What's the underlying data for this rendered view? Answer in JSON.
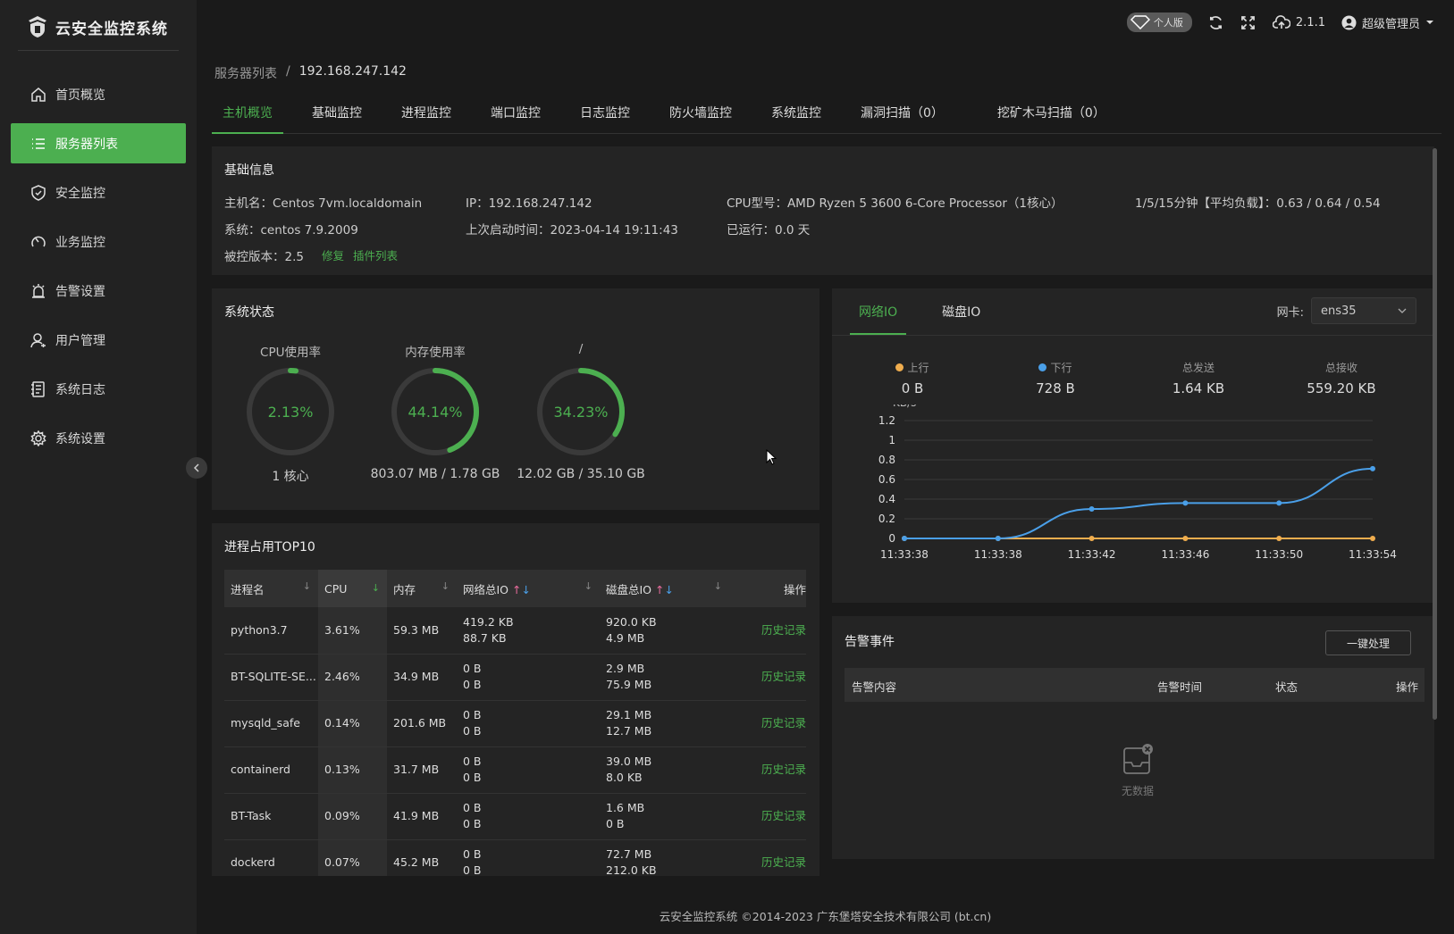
{
  "app": {
    "title": "云安全监控系统"
  },
  "topbar": {
    "edition_badge": "个人版",
    "version": "2.1.1",
    "user": "超级管理员"
  },
  "sidebar": {
    "items": [
      {
        "label": "首页概览",
        "icon": "home-icon"
      },
      {
        "label": "服务器列表",
        "icon": "list-icon",
        "active": true
      },
      {
        "label": "安全监控",
        "icon": "shield-icon"
      },
      {
        "label": "业务监控",
        "icon": "gauge-icon"
      },
      {
        "label": "告警设置",
        "icon": "alarm-icon"
      },
      {
        "label": "用户管理",
        "icon": "user-icon"
      },
      {
        "label": "系统日志",
        "icon": "log-icon"
      },
      {
        "label": "系统设置",
        "icon": "gear-icon"
      }
    ]
  },
  "breadcrumb": {
    "parent": "服务器列表",
    "sep": "/",
    "current": "192.168.247.142"
  },
  "tabs": [
    "主机概览",
    "基础监控",
    "进程监控",
    "端口监控",
    "日志监控",
    "防火墙监控",
    "系统监控",
    "漏洞扫描（0）",
    "挖矿木马扫描（0）"
  ],
  "info": {
    "title": "基础信息",
    "hostname": "主机名：Centos 7vm.localdomain",
    "ip": "IP：192.168.247.142",
    "cpu_model": "CPU型号：AMD Ryzen 5 3600 6-Core Processor（1核心）",
    "load": "1/5/15分钟【平均负载】：0.63 / 0.64 / 0.54",
    "os": "系统：centos 7.9.2009",
    "boot": "上次启动时间：2023-04-14 19:11:43",
    "uptime": "已运行：0.0 天",
    "agent_version": "被控版本：2.5",
    "repair": "修复",
    "plugins": "插件列表"
  },
  "sys_status": {
    "title": "系统状态",
    "gauges": [
      {
        "label": "CPU使用率",
        "pct": "2.13%",
        "value": 2.13,
        "sub": "1 核心"
      },
      {
        "label": "内存使用率",
        "pct": "44.14%",
        "value": 44.14,
        "sub": "803.07 MB / 1.78 GB"
      },
      {
        "label": "/",
        "pct": "34.23%",
        "value": 34.23,
        "sub": "12.02 GB / 35.10 GB"
      }
    ]
  },
  "net": {
    "tabs": [
      "网络IO",
      "磁盘IO"
    ],
    "nic_label": "网卡:",
    "nic_value": "ens35",
    "stats": [
      {
        "label": "上行",
        "value": "0 B",
        "color": "#f0ad4e"
      },
      {
        "label": "下行",
        "value": "728 B",
        "color": "#4a9fe8"
      },
      {
        "label": "总发送",
        "value": "1.64 KB"
      },
      {
        "label": "总接收",
        "value": "559.20 KB"
      }
    ]
  },
  "chart_data": {
    "type": "line",
    "ylabel": "KB/s",
    "ylim": [
      0,
      1.2
    ],
    "yticks": [
      "1.2",
      "1",
      "0.8",
      "0.6",
      "0.4",
      "0.2",
      "0"
    ],
    "categories": [
      "11:33:38",
      "11:33:38",
      "11:33:42",
      "11:33:46",
      "11:33:50",
      "11:33:54"
    ],
    "series": [
      {
        "name": "上行",
        "color": "#f0ad4e",
        "values": [
          0,
          0,
          0,
          0,
          0,
          0
        ]
      },
      {
        "name": "下行",
        "color": "#4a9fe8",
        "values": [
          0,
          0,
          0.3,
          0.36,
          0.36,
          0.71
        ]
      }
    ]
  },
  "proc": {
    "title": "进程占用TOP10",
    "headers": [
      "进程名",
      "CPU",
      "内存",
      "网络总IO",
      "磁盘总IO",
      "操作"
    ],
    "rows": [
      {
        "name": "python3.7",
        "cpu": "3.61%",
        "mem": "59.3 MB",
        "net1": "419.2 KB",
        "net2": "88.7 KB",
        "disk1": "920.0 KB",
        "disk2": "4.9 MB",
        "action": "历史记录"
      },
      {
        "name": "BT-SQLITE-SE...",
        "cpu": "2.46%",
        "mem": "34.9 MB",
        "net1": "0 B",
        "net2": "0 B",
        "disk1": "2.9 MB",
        "disk2": "75.9 MB",
        "action": "历史记录"
      },
      {
        "name": "mysqld_safe",
        "cpu": "0.14%",
        "mem": "201.6 MB",
        "net1": "0 B",
        "net2": "0 B",
        "disk1": "29.1 MB",
        "disk2": "12.7 MB",
        "action": "历史记录"
      },
      {
        "name": "containerd",
        "cpu": "0.13%",
        "mem": "31.7 MB",
        "net1": "0 B",
        "net2": "0 B",
        "disk1": "39.0 MB",
        "disk2": "8.0 KB",
        "action": "历史记录"
      },
      {
        "name": "BT-Task",
        "cpu": "0.09%",
        "mem": "41.9 MB",
        "net1": "0 B",
        "net2": "0 B",
        "disk1": "1.6 MB",
        "disk2": "0 B",
        "action": "历史记录"
      },
      {
        "name": "dockerd",
        "cpu": "0.07%",
        "mem": "45.2 MB",
        "net1": "0 B",
        "net2": "0 B",
        "disk1": "72.7 MB",
        "disk2": "212.0 KB",
        "action": "历史记录"
      }
    ]
  },
  "alarm": {
    "title": "告警事件",
    "button": "一键处理",
    "headers": [
      "告警内容",
      "告警时间",
      "状态",
      "操作"
    ],
    "empty": "无数据"
  },
  "footer": "云安全监控系统 ©2014-2023 广东堡塔安全技术有限公司 (bt.cn)"
}
